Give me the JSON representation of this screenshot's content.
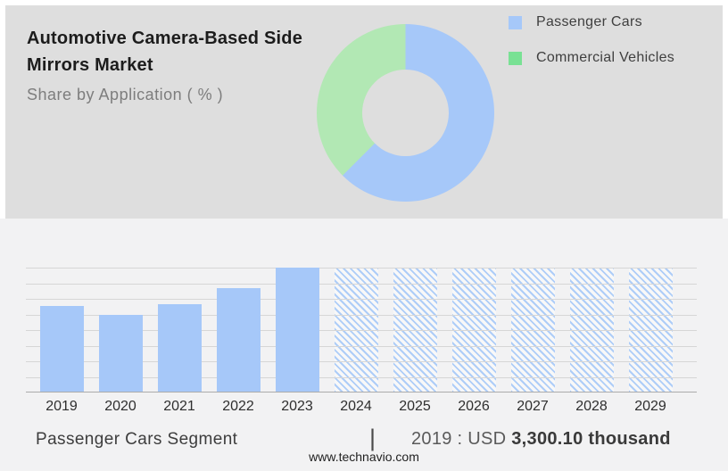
{
  "page": {
    "header_bg": "#dedede",
    "section_bg": "#f2f2f3"
  },
  "header": {
    "title": "Automotive Camera-Based Side Mirrors Market",
    "subtitle": "Share by Application ( % )"
  },
  "legend": {
    "items": [
      {
        "label": "Passenger Cars",
        "color": "#a6c8f9"
      },
      {
        "label": "Commercial Vehicles",
        "color": "#79e194"
      }
    ]
  },
  "chart_data": [
    {
      "type": "pie",
      "title": "Share by Application ( % )",
      "donut": true,
      "labels": [
        "Passenger Cars",
        "Commercial Vehicles"
      ],
      "values_pct": [
        62.5,
        37.5
      ],
      "colors": [
        "#a6c8f9",
        "#b2e8b4"
      ],
      "note": "segment percentages estimated from arc angles; no numeric labels shown",
      "legend_position": "top-right"
    },
    {
      "type": "bar",
      "categories": [
        "2019",
        "2020",
        "2021",
        "2022",
        "2023",
        "2024",
        "2025",
        "2026",
        "2027",
        "2028",
        "2029"
      ],
      "series": [
        {
          "name": "Passenger Cars Segment",
          "values_relative_pct": [
            69,
            62,
            71,
            83.5,
            100,
            100,
            100,
            100,
            100,
            100,
            100
          ],
          "styles": [
            "solid",
            "solid",
            "solid",
            "solid",
            "solid",
            "hatched",
            "hatched",
            "hatched",
            "hatched",
            "hatched",
            "hatched"
          ]
        }
      ],
      "known_values": {
        "2019": "USD 3,300.10 thousand"
      },
      "bar_color": "#a6c8f9",
      "hatch_color": "#aecdf8",
      "gridline_count": 9,
      "grid_on": true,
      "xlabel": "",
      "ylabel": ""
    }
  ],
  "footer": {
    "segment_label": "Passenger Cars Segment",
    "separator": "|",
    "stat_prefix": "2019 : USD",
    "stat_value": "3,300.10 thousand",
    "website": "www.technavio.com"
  }
}
